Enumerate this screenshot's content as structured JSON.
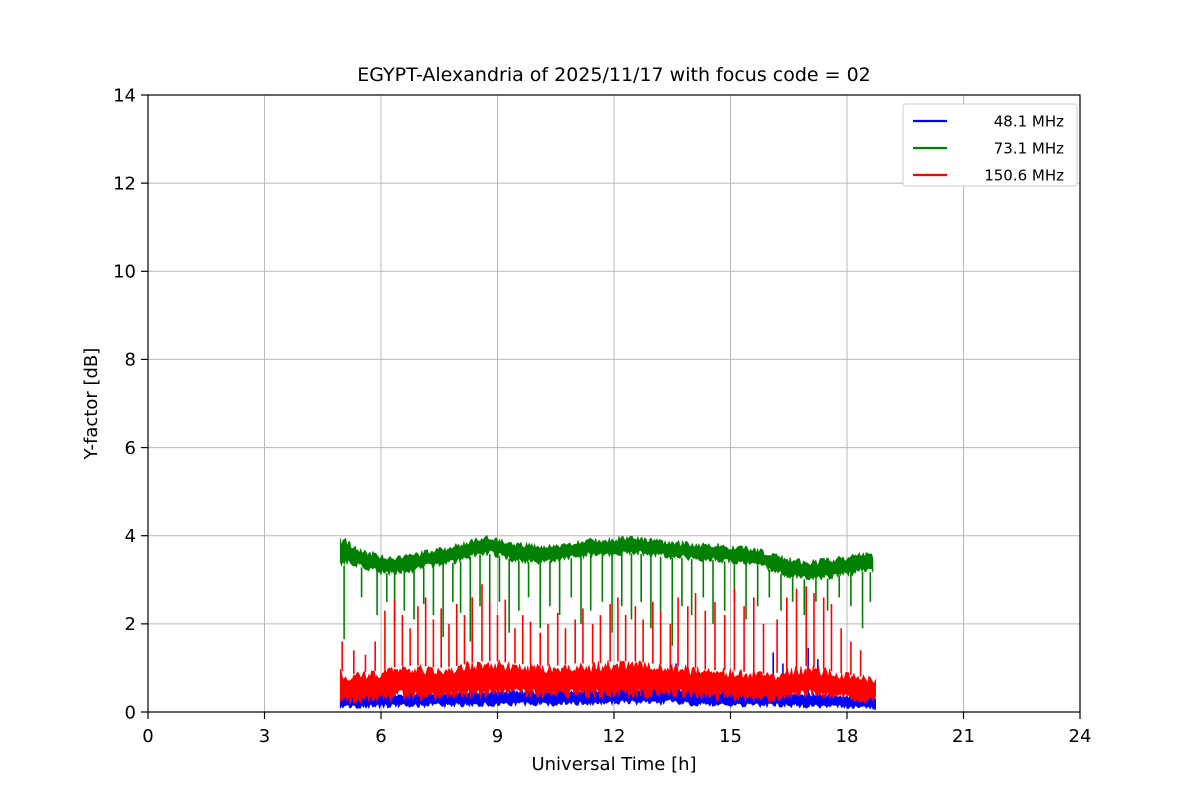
{
  "figure": {
    "background": "#ffffff"
  },
  "chart_data": {
    "type": "line",
    "title": "EGYPT-Alexandria of 2025/11/17 with focus code = 02",
    "xlabel": "Universal Time [h]",
    "ylabel": "Y-factor [dB]",
    "xlim": [
      0,
      24
    ],
    "ylim": [
      0,
      14
    ],
    "xticks": [
      0,
      3,
      6,
      9,
      12,
      15,
      18,
      21,
      24
    ],
    "yticks": [
      0,
      2,
      4,
      6,
      8,
      10,
      12,
      14
    ],
    "grid": true,
    "grid_color": "#b8b8b8",
    "axis_color": "#000000",
    "legend": {
      "position": "upper right",
      "border_color": "#cccccc",
      "background": "#ffffff"
    },
    "series": [
      {
        "name": "48.1 MHz",
        "color": "#0000ff",
        "spike_dir": "up",
        "band": [
          [
            4.95,
            0.05,
            0.42
          ],
          [
            5.5,
            0.08,
            0.42
          ],
          [
            6.0,
            0.08,
            0.45
          ],
          [
            6.5,
            0.1,
            0.45
          ],
          [
            7.0,
            0.1,
            0.48
          ],
          [
            7.5,
            0.1,
            0.48
          ],
          [
            8.0,
            0.1,
            0.5
          ],
          [
            8.5,
            0.12,
            0.5
          ],
          [
            9.0,
            0.12,
            0.52
          ],
          [
            9.5,
            0.12,
            0.5
          ],
          [
            10.0,
            0.12,
            0.5
          ],
          [
            10.5,
            0.12,
            0.52
          ],
          [
            11.0,
            0.14,
            0.55
          ],
          [
            11.5,
            0.14,
            0.55
          ],
          [
            12.0,
            0.15,
            0.58
          ],
          [
            12.5,
            0.15,
            0.58
          ],
          [
            13.0,
            0.15,
            0.6
          ],
          [
            13.5,
            0.15,
            0.6
          ],
          [
            14.0,
            0.12,
            0.55
          ],
          [
            14.5,
            0.12,
            0.52
          ],
          [
            15.0,
            0.1,
            0.5
          ],
          [
            15.5,
            0.1,
            0.48
          ],
          [
            16.0,
            0.1,
            0.48
          ],
          [
            16.5,
            0.1,
            0.45
          ],
          [
            17.0,
            0.08,
            0.45
          ],
          [
            17.5,
            0.08,
            0.42
          ],
          [
            18.0,
            0.06,
            0.4
          ],
          [
            18.75,
            0.05,
            0.38
          ]
        ],
        "spikes": [
          [
            8.6,
            0.9
          ],
          [
            9.3,
            0.8
          ],
          [
            11.2,
            0.85
          ],
          [
            13.45,
            1.5
          ],
          [
            13.6,
            1.1
          ],
          [
            14.2,
            0.9
          ],
          [
            16.1,
            1.35
          ],
          [
            16.35,
            1.1
          ],
          [
            17.0,
            1.45
          ],
          [
            17.25,
            1.2
          ],
          [
            18.2,
            0.8
          ]
        ]
      },
      {
        "name": "73.1 MHz",
        "color": "#008000",
        "spike_dir": "down",
        "band": [
          [
            4.95,
            3.2,
            4.0
          ],
          [
            5.1,
            3.3,
            3.95
          ],
          [
            5.3,
            3.3,
            3.8
          ],
          [
            5.6,
            3.2,
            3.7
          ],
          [
            6.0,
            3.1,
            3.6
          ],
          [
            6.4,
            3.1,
            3.55
          ],
          [
            6.8,
            3.15,
            3.6
          ],
          [
            7.2,
            3.25,
            3.7
          ],
          [
            7.6,
            3.3,
            3.75
          ],
          [
            8.0,
            3.35,
            3.85
          ],
          [
            8.4,
            3.5,
            3.95
          ],
          [
            8.7,
            3.55,
            4.05
          ],
          [
            9.0,
            3.5,
            3.95
          ],
          [
            9.4,
            3.4,
            3.9
          ],
          [
            9.8,
            3.35,
            3.85
          ],
          [
            10.2,
            3.35,
            3.8
          ],
          [
            10.6,
            3.4,
            3.85
          ],
          [
            11.0,
            3.45,
            3.9
          ],
          [
            11.4,
            3.5,
            3.95
          ],
          [
            11.8,
            3.5,
            3.95
          ],
          [
            12.2,
            3.55,
            4.0
          ],
          [
            12.6,
            3.55,
            4.0
          ],
          [
            13.0,
            3.5,
            3.95
          ],
          [
            13.4,
            3.45,
            3.9
          ],
          [
            13.8,
            3.45,
            3.9
          ],
          [
            14.2,
            3.4,
            3.85
          ],
          [
            14.6,
            3.4,
            3.85
          ],
          [
            15.0,
            3.35,
            3.8
          ],
          [
            15.4,
            3.3,
            3.78
          ],
          [
            15.8,
            3.25,
            3.7
          ],
          [
            16.2,
            3.1,
            3.6
          ],
          [
            16.6,
            3.0,
            3.5
          ],
          [
            17.0,
            2.95,
            3.45
          ],
          [
            17.4,
            2.95,
            3.5
          ],
          [
            17.8,
            3.05,
            3.55
          ],
          [
            18.2,
            3.1,
            3.6
          ],
          [
            18.5,
            3.15,
            3.65
          ],
          [
            18.7,
            3.1,
            3.6
          ]
        ],
        "spikes": [
          [
            5.05,
            1.65
          ],
          [
            5.5,
            2.6
          ],
          [
            5.9,
            2.2
          ],
          [
            6.15,
            2.5
          ],
          [
            6.35,
            1.95
          ],
          [
            6.6,
            2.3
          ],
          [
            6.85,
            2.1
          ],
          [
            7.1,
            2.45
          ],
          [
            7.35,
            2.2
          ],
          [
            7.6,
            1.7
          ],
          [
            7.85,
            2.5
          ],
          [
            8.05,
            2.25
          ],
          [
            8.3,
            1.6
          ],
          [
            8.55,
            2.4
          ],
          [
            8.8,
            2.0
          ],
          [
            9.05,
            2.5
          ],
          [
            9.3,
            1.8
          ],
          [
            9.55,
            2.3
          ],
          [
            9.8,
            2.6
          ],
          [
            10.1,
            1.9
          ],
          [
            10.35,
            2.4
          ],
          [
            10.6,
            2.2
          ],
          [
            10.9,
            2.6
          ],
          [
            11.15,
            2.0
          ],
          [
            11.4,
            2.3
          ],
          [
            11.7,
            2.5
          ],
          [
            11.95,
            1.8
          ],
          [
            12.2,
            2.4
          ],
          [
            12.45,
            2.1
          ],
          [
            12.7,
            2.5
          ],
          [
            12.95,
            1.9
          ],
          [
            13.2,
            2.3
          ],
          [
            13.5,
            1.5
          ],
          [
            13.75,
            2.4
          ],
          [
            14.0,
            2.2
          ],
          [
            14.3,
            2.6
          ],
          [
            14.55,
            2.0
          ],
          [
            14.85,
            2.3
          ],
          [
            15.1,
            2.5
          ],
          [
            15.4,
            2.1
          ],
          [
            15.7,
            2.4
          ],
          [
            16.0,
            2.6
          ],
          [
            16.3,
            2.3
          ],
          [
            16.6,
            2.5
          ],
          [
            16.9,
            2.2
          ],
          [
            17.2,
            2.5
          ],
          [
            17.5,
            2.3
          ],
          [
            17.8,
            2.6
          ],
          [
            18.1,
            2.4
          ],
          [
            18.4,
            1.9
          ],
          [
            18.6,
            2.5
          ]
        ]
      },
      {
        "name": "150.6 MHz",
        "color": "#ff0000",
        "spike_dir": "up",
        "band": [
          [
            4.95,
            0.15,
            1.0
          ],
          [
            5.2,
            0.18,
            0.9
          ],
          [
            5.5,
            0.2,
            0.95
          ],
          [
            6.0,
            0.2,
            1.0
          ],
          [
            6.5,
            0.25,
            1.1
          ],
          [
            7.0,
            0.25,
            1.1
          ],
          [
            7.5,
            0.25,
            1.05
          ],
          [
            8.0,
            0.3,
            1.1
          ],
          [
            8.5,
            0.3,
            1.2
          ],
          [
            9.0,
            0.3,
            1.2
          ],
          [
            9.5,
            0.3,
            1.15
          ],
          [
            10.0,
            0.3,
            1.1
          ],
          [
            10.5,
            0.3,
            1.1
          ],
          [
            11.0,
            0.3,
            1.15
          ],
          [
            11.5,
            0.3,
            1.15
          ],
          [
            12.0,
            0.3,
            1.2
          ],
          [
            12.5,
            0.3,
            1.2
          ],
          [
            13.0,
            0.3,
            1.15
          ],
          [
            13.5,
            0.3,
            1.1
          ],
          [
            14.0,
            0.28,
            1.05
          ],
          [
            14.5,
            0.25,
            1.0
          ],
          [
            15.0,
            0.25,
            1.0
          ],
          [
            15.5,
            0.22,
            0.95
          ],
          [
            16.0,
            0.2,
            0.9
          ],
          [
            16.5,
            0.25,
            1.0
          ],
          [
            17.0,
            0.3,
            1.1
          ],
          [
            17.5,
            0.28,
            1.0
          ],
          [
            18.0,
            0.25,
            0.9
          ],
          [
            18.4,
            0.2,
            0.85
          ],
          [
            18.75,
            0.18,
            0.8
          ]
        ],
        "spikes": [
          [
            5.0,
            1.6
          ],
          [
            5.3,
            1.4
          ],
          [
            5.6,
            1.3
          ],
          [
            5.85,
            1.6
          ],
          [
            6.1,
            2.3
          ],
          [
            6.35,
            2.55
          ],
          [
            6.55,
            2.2
          ],
          [
            6.75,
            1.9
          ],
          [
            6.95,
            2.4
          ],
          [
            7.15,
            2.6
          ],
          [
            7.35,
            2.1
          ],
          [
            7.55,
            2.35
          ],
          [
            7.75,
            2.0
          ],
          [
            7.95,
            2.45
          ],
          [
            8.15,
            2.2
          ],
          [
            8.35,
            2.6
          ],
          [
            8.6,
            2.9
          ],
          [
            8.8,
            2.5
          ],
          [
            9.0,
            2.2
          ],
          [
            9.2,
            2.55
          ],
          [
            9.45,
            1.9
          ],
          [
            9.65,
            2.2
          ],
          [
            9.85,
            2.05
          ],
          [
            10.1,
            1.8
          ],
          [
            10.3,
            2.0
          ],
          [
            10.55,
            2.25
          ],
          [
            10.75,
            1.9
          ],
          [
            11.0,
            2.1
          ],
          [
            11.2,
            2.35
          ],
          [
            11.45,
            2.0
          ],
          [
            11.65,
            2.2
          ],
          [
            11.9,
            2.45
          ],
          [
            12.1,
            2.6
          ],
          [
            12.3,
            2.2
          ],
          [
            12.55,
            2.4
          ],
          [
            12.75,
            2.1
          ],
          [
            13.0,
            2.5
          ],
          [
            13.2,
            2.3
          ],
          [
            13.45,
            2.0
          ],
          [
            13.65,
            2.6
          ],
          [
            13.9,
            2.4
          ],
          [
            14.1,
            2.7
          ],
          [
            14.35,
            2.3
          ],
          [
            14.6,
            2.5
          ],
          [
            14.85,
            2.2
          ],
          [
            15.1,
            2.8
          ],
          [
            15.35,
            2.4
          ],
          [
            15.6,
            2.6
          ],
          [
            15.85,
            2.0
          ],
          [
            16.2,
            2.1
          ],
          [
            16.45,
            2.6
          ],
          [
            16.7,
            2.8
          ],
          [
            16.95,
            2.85
          ],
          [
            17.15,
            2.7
          ],
          [
            17.4,
            2.6
          ],
          [
            17.6,
            2.45
          ],
          [
            17.85,
            1.9
          ],
          [
            18.1,
            1.6
          ],
          [
            18.35,
            1.4
          ]
        ]
      }
    ]
  }
}
